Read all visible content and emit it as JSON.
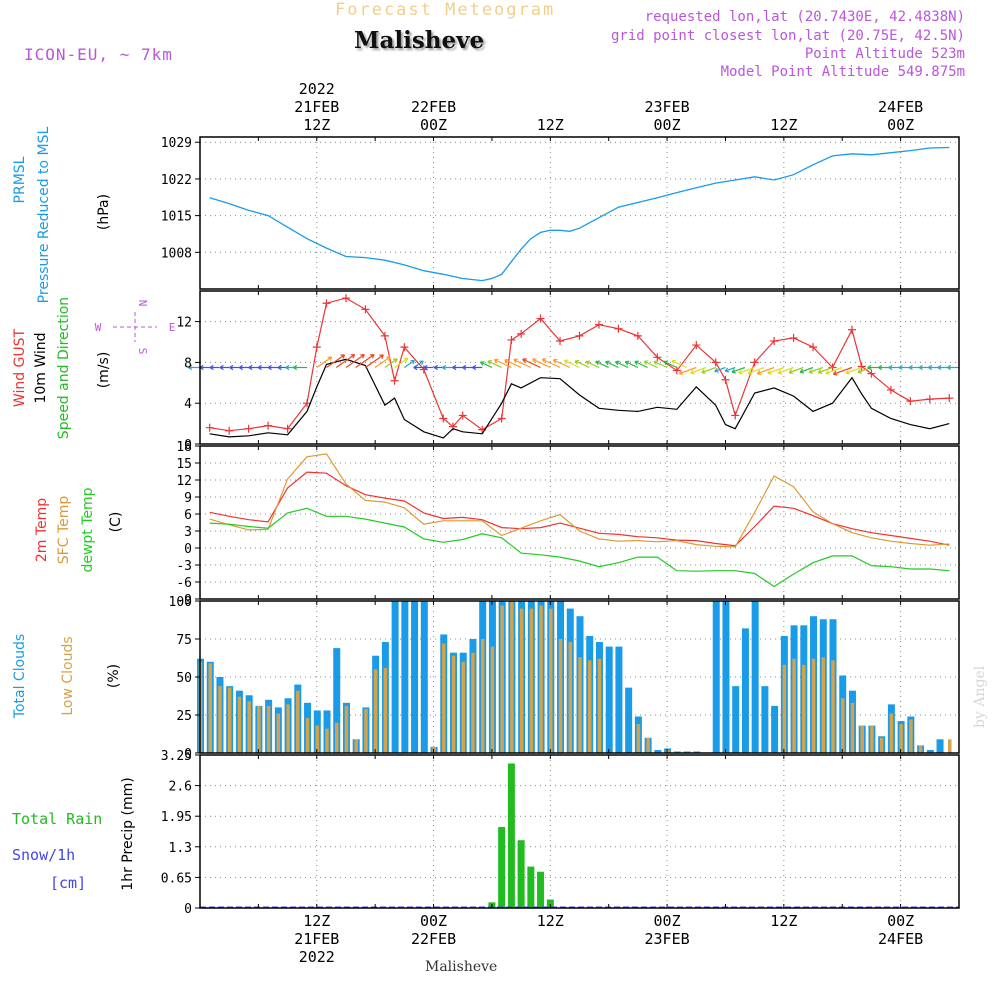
{
  "header": {
    "product_title": "Forecast Meteogram",
    "location": "Malisheve",
    "model": "ICON-EU, ~ 7km",
    "requested": "requested lon,lat (20.7430E, 42.4838N)",
    "grid_point": "grid point closest lon,lat (20.75E, 42.5N)",
    "point_altitude": "Point Altitude 523m",
    "model_altitude": "Model Point Altitude 549.875m"
  },
  "footer": {
    "location": "Malisheve",
    "watermark": "by Angel"
  },
  "time_axis": {
    "ticks": [
      {
        "hour": 12,
        "top": [
          "2022",
          "21FEB",
          "12Z"
        ],
        "bottom": [
          "12Z",
          "21FEB",
          "2022"
        ]
      },
      {
        "hour": 24,
        "top": [
          "22FEB",
          "00Z"
        ],
        "bottom": [
          "00Z",
          "22FEB"
        ]
      },
      {
        "hour": 36,
        "top": [
          "12Z"
        ],
        "bottom": [
          "12Z"
        ]
      },
      {
        "hour": 48,
        "top": [
          "23FEB",
          "00Z"
        ],
        "bottom": [
          "00Z",
          "23FEB"
        ]
      },
      {
        "hour": 60,
        "top": [
          "12Z"
        ],
        "bottom": [
          "12Z"
        ]
      },
      {
        "hour": 72,
        "top": [
          "24FEB",
          "00Z"
        ],
        "bottom": [
          "00Z",
          "24FEB"
        ]
      }
    ]
  },
  "colors": {
    "pressure": "#1a9be8",
    "gust": "#ee3333",
    "wind": "#000000",
    "wind_label": "#22bb22",
    "t2m": "#ee3333",
    "tsfc": "#dd9933",
    "dewpt": "#22cc22",
    "total_clouds": "#1a9be8",
    "low_clouds": "#d4a24a",
    "rain": "#22bb22",
    "snow": "#4444ee",
    "purple": "#bb55dd",
    "grid": "#888888"
  },
  "chart_data": [
    {
      "type": "line",
      "panel": "pressure",
      "labels": [
        "PRMSL",
        "Pressure Reduced to MSL"
      ],
      "unit": "(hPa)",
      "yticks": [
        1008,
        1015,
        1022,
        1029
      ],
      "ylim": [
        1001,
        1030
      ],
      "x": [
        1,
        3,
        5,
        7,
        9,
        11,
        13,
        15,
        17,
        19,
        21,
        23,
        25,
        27,
        29,
        30,
        31,
        32,
        33,
        34,
        35,
        36,
        37,
        38,
        39,
        41,
        43,
        45,
        47,
        49,
        51,
        53,
        55,
        57,
        59,
        61,
        63,
        65,
        67,
        69,
        71,
        73,
        75,
        77
      ],
      "values": [
        1018.4,
        1017.3,
        1016.0,
        1015.0,
        1012.8,
        1010.6,
        1008.8,
        1007.2,
        1007.0,
        1006.5,
        1005.6,
        1004.5,
        1003.8,
        1003.0,
        1002.6,
        1003.0,
        1003.8,
        1006.2,
        1008.6,
        1010.6,
        1011.8,
        1012.2,
        1012.2,
        1012.0,
        1012.6,
        1014.6,
        1016.6,
        1017.5,
        1018.4,
        1019.4,
        1020.3,
        1021.2,
        1021.8,
        1022.4,
        1021.8,
        1022.8,
        1024.7,
        1026.4,
        1026.8,
        1026.6,
        1027.0,
        1027.4,
        1027.9,
        1028.0
      ]
    },
    {
      "type": "line",
      "panel": "wind",
      "labels": [
        "Wind GUST",
        "10m Wind",
        "Speed and Direction"
      ],
      "unit": "(m/s)",
      "compass": {
        "n": "N",
        "w": "W",
        "e": "E",
        "s": "S"
      },
      "yticks": [
        0,
        4,
        8,
        12
      ],
      "ylim": [
        0,
        15
      ],
      "x": [
        1,
        3,
        5,
        7,
        9,
        11,
        12,
        13,
        15,
        17,
        19,
        20,
        21,
        23,
        25,
        26,
        27,
        29,
        31,
        32,
        33,
        35,
        37,
        39,
        41,
        43,
        45,
        47,
        49,
        51,
        53,
        54,
        55,
        57,
        59,
        61,
        63,
        65,
        67,
        68,
        69,
        71,
        73,
        75,
        77
      ],
      "series": [
        {
          "name": "Wind GUST",
          "values": [
            1.6,
            1.3,
            1.5,
            1.8,
            1.5,
            4.0,
            9.5,
            13.8,
            14.3,
            13.2,
            10.6,
            6.2,
            9.5,
            7.3,
            2.5,
            1.7,
            2.8,
            1.4,
            2.5,
            10.2,
            10.8,
            12.3,
            10.1,
            10.6,
            11.7,
            11.3,
            10.6,
            8.5,
            7.2,
            9.7,
            8.0,
            6.3,
            2.8,
            8.0,
            10.1,
            10.4,
            9.5,
            7.5,
            11.2,
            7.6,
            6.9,
            5.3,
            4.2,
            4.4,
            4.5
          ]
        },
        {
          "name": "10m Wind",
          "values": [
            1.0,
            0.7,
            0.8,
            1.1,
            0.9,
            3.2,
            5.6,
            7.8,
            8.3,
            7.7,
            3.8,
            4.5,
            2.4,
            1.2,
            0.6,
            1.5,
            1.2,
            1.0,
            4.0,
            5.9,
            5.5,
            6.5,
            6.4,
            4.8,
            3.5,
            3.3,
            3.2,
            3.6,
            3.4,
            5.6,
            3.8,
            1.9,
            1.5,
            5.0,
            5.5,
            4.7,
            3.2,
            4.0,
            6.5,
            4.9,
            3.5,
            2.5,
            1.9,
            1.5,
            2.0
          ]
        }
      ]
    },
    {
      "type": "line",
      "panel": "temperature",
      "labels": [
        "2m Temp",
        "SFC Temp",
        "dewpt Temp"
      ],
      "unit": "(C)",
      "yticks": [
        -9,
        -6,
        -3,
        0,
        3,
        6,
        9,
        12,
        15,
        18
      ],
      "ylim": [
        -9,
        18
      ],
      "x": [
        1,
        3,
        5,
        7,
        9,
        11,
        13,
        15,
        17,
        19,
        21,
        23,
        25,
        27,
        29,
        31,
        33,
        35,
        37,
        39,
        41,
        43,
        45,
        47,
        49,
        51,
        53,
        55,
        57,
        59,
        61,
        63,
        65,
        67,
        69,
        71,
        73,
        75,
        77
      ],
      "series": [
        {
          "name": "2m Temp",
          "values": [
            6.3,
            5.6,
            5.0,
            4.6,
            10.6,
            13.4,
            13.2,
            11.0,
            9.4,
            8.8,
            8.3,
            6.2,
            5.2,
            5.4,
            5.0,
            3.6,
            3.4,
            3.6,
            4.4,
            3.5,
            2.6,
            2.4,
            2.0,
            1.8,
            1.4,
            1.3,
            0.8,
            0.4,
            3.8,
            7.4,
            7.0,
            5.7,
            4.3,
            3.4,
            2.7,
            2.2,
            1.7,
            1.2,
            0.5
          ]
        },
        {
          "name": "SFC Temp",
          "values": [
            5.1,
            4.1,
            3.2,
            3.3,
            12.2,
            16.1,
            16.6,
            11.3,
            8.4,
            8.1,
            7.1,
            4.2,
            4.8,
            4.8,
            4.8,
            2.2,
            3.5,
            4.8,
            5.9,
            3.0,
            1.6,
            1.2,
            1.3,
            1.1,
            1.3,
            0.6,
            0.3,
            0.2,
            6.3,
            12.7,
            10.8,
            6.4,
            4.3,
            2.7,
            1.8,
            1.2,
            0.8,
            0.5,
            0.7
          ]
        },
        {
          "name": "dewpt Temp",
          "values": [
            4.4,
            4.2,
            3.8,
            3.5,
            6.2,
            7.0,
            5.6,
            5.6,
            5.1,
            4.4,
            3.7,
            1.6,
            1.0,
            1.5,
            2.5,
            1.8,
            -0.9,
            -1.2,
            -1.6,
            -2.3,
            -3.3,
            -2.6,
            -1.6,
            -1.6,
            -4.0,
            -4.1,
            -4.0,
            -4.0,
            -4.5,
            -6.8,
            -4.6,
            -2.6,
            -1.4,
            -1.4,
            -3.1,
            -3.3,
            -3.7,
            -3.7,
            -4.0
          ]
        }
      ]
    },
    {
      "type": "bar",
      "panel": "clouds",
      "labels": [
        "Total Clouds",
        "Low Clouds"
      ],
      "unit": "(%)",
      "yticks": [
        0,
        25,
        50,
        75,
        100
      ],
      "ylim": [
        0,
        100
      ],
      "x": [
        0,
        1,
        2,
        3,
        4,
        5,
        6,
        7,
        8,
        9,
        10,
        11,
        12,
        13,
        14,
        15,
        16,
        17,
        18,
        19,
        20,
        21,
        22,
        23,
        24,
        25,
        26,
        27,
        28,
        29,
        30,
        31,
        32,
        33,
        34,
        35,
        36,
        37,
        38,
        39,
        40,
        41,
        42,
        43,
        44,
        45,
        46,
        47,
        48,
        49,
        50,
        51,
        52,
        53,
        54,
        55,
        56,
        57,
        58,
        59,
        60,
        61,
        62,
        63,
        64,
        65,
        66,
        67,
        68,
        69,
        70,
        71,
        72,
        73,
        74,
        75,
        76,
        77
      ],
      "series": [
        {
          "name": "Total Clouds",
          "values": [
            62,
            60,
            50,
            44,
            41,
            38,
            31,
            35,
            30,
            36,
            45,
            33,
            28,
            28,
            69,
            33,
            9,
            30,
            64,
            73,
            100,
            100,
            100,
            100,
            4,
            78,
            66,
            66,
            75,
            100,
            100,
            100,
            100,
            100,
            100,
            100,
            100,
            100,
            95,
            90,
            77,
            73,
            70,
            70,
            43,
            24,
            10,
            2,
            3,
            1,
            1,
            1,
            0,
            100,
            100,
            44,
            82,
            100,
            44,
            31,
            77,
            84,
            84,
            90,
            88,
            88,
            51,
            41,
            18,
            18,
            11,
            32,
            21,
            24,
            5,
            2,
            9,
            0
          ]
        },
        {
          "name": "Low Clouds",
          "values": [
            60,
            59,
            44,
            43,
            37,
            34,
            31,
            31,
            26,
            32,
            41,
            23,
            18,
            16,
            20,
            31,
            9,
            29,
            55,
            56,
            0,
            0,
            0,
            0,
            4,
            72,
            64,
            60,
            66,
            75,
            70,
            97,
            100,
            95,
            95,
            97,
            95,
            75,
            73,
            63,
            61,
            62,
            0,
            0,
            0,
            19,
            10,
            0,
            2,
            0,
            0,
            0,
            0,
            0,
            0,
            0,
            0,
            0,
            0,
            0,
            58,
            62,
            58,
            62,
            63,
            61,
            36,
            33,
            18,
            18,
            10,
            26,
            19,
            22,
            5,
            0,
            0,
            9
          ]
        }
      ]
    },
    {
      "type": "bar",
      "panel": "precipitation",
      "labels": [
        "Total Rain",
        "Snow/1h",
        "[cm]"
      ],
      "unit": "1hr Precip (mm)",
      "yticks": [
        "0",
        "0.65",
        "1.3",
        "1.95",
        "2.6",
        "3.25"
      ],
      "ylim": [
        0,
        3.25
      ],
      "x": [
        30,
        31,
        32,
        33,
        34,
        35,
        36
      ],
      "series": [
        {
          "name": "Total Rain",
          "values": [
            0.12,
            1.72,
            3.07,
            1.44,
            0.88,
            0.77,
            0.18
          ]
        }
      ]
    }
  ]
}
